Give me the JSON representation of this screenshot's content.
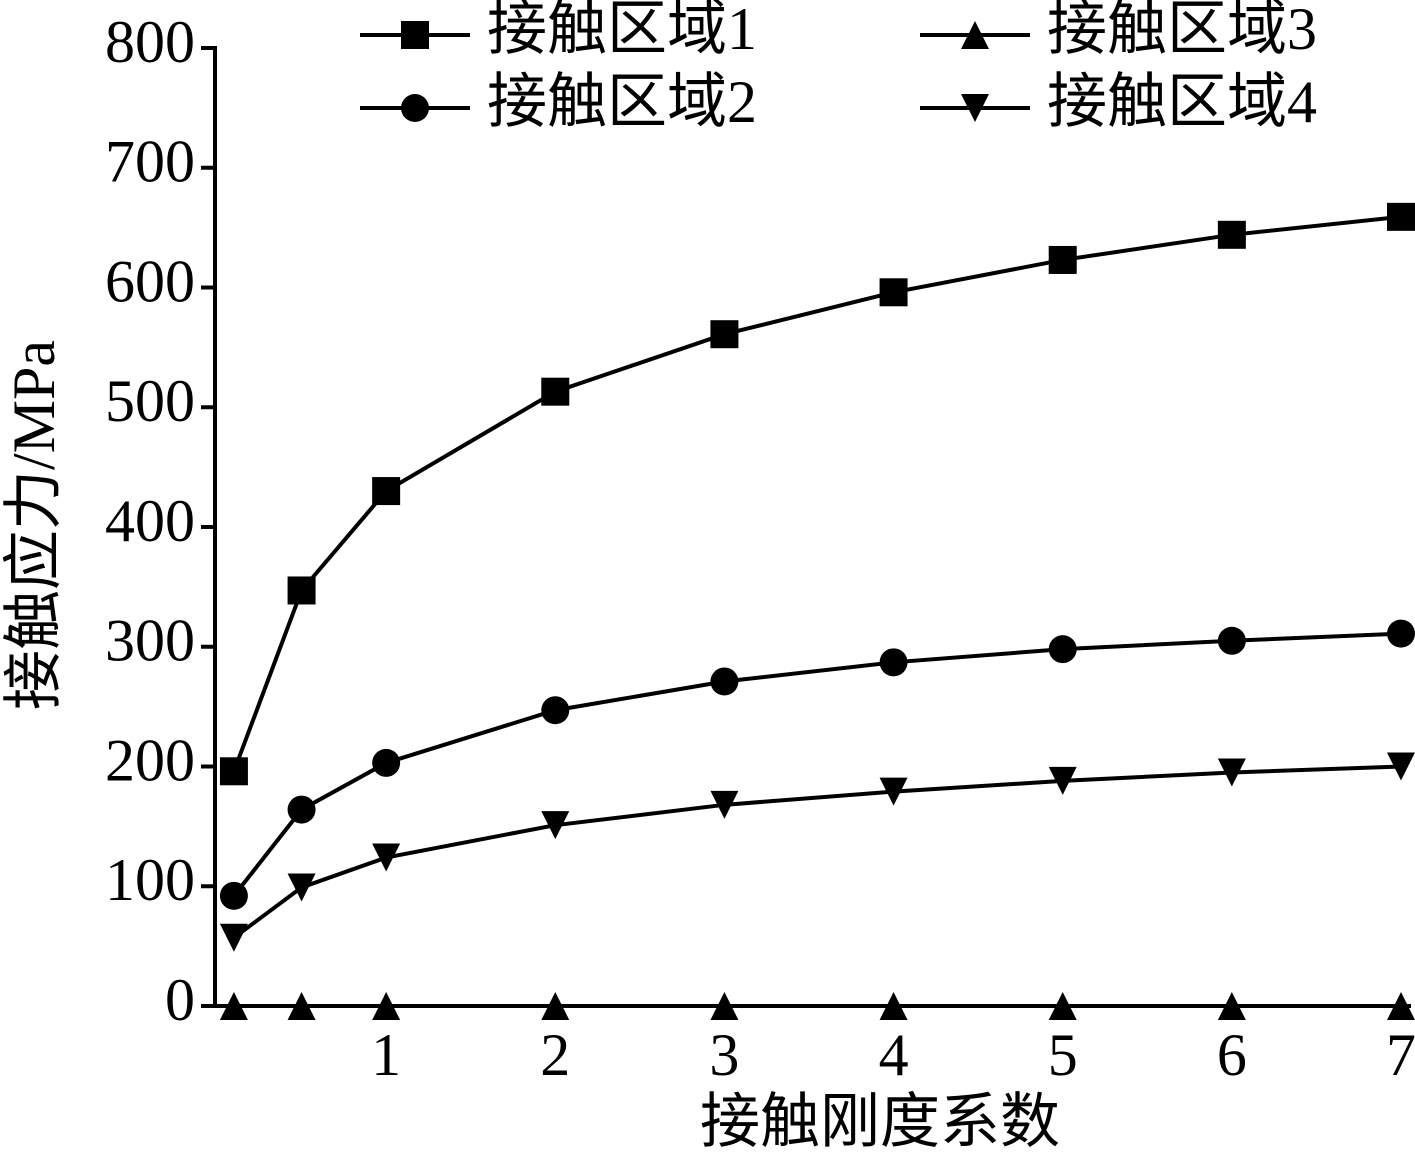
{
  "chart_data": {
    "type": "line",
    "x_label": "接触刚度系数",
    "y_label": "接触应力/MPa",
    "x": [
      0.1,
      0.5,
      1,
      2,
      3,
      4,
      5,
      6,
      7
    ],
    "series": [
      {
        "name": "接触区域1",
        "color": "#000000",
        "marker": "square",
        "values": [
          196,
          347,
          430,
          513,
          561,
          596,
          623,
          644,
          659
        ]
      },
      {
        "name": "接触区域2",
        "color": "#000000",
        "marker": "circle",
        "values": [
          92,
          164,
          203,
          247,
          271,
          287,
          298,
          305,
          311
        ]
      },
      {
        "name": "接触区域3",
        "color": "#000000",
        "marker": "triangle-up",
        "values": [
          0,
          0,
          0,
          0,
          0,
          0,
          0,
          0,
          0
        ]
      },
      {
        "name": "接触区域4",
        "color": "#000000",
        "marker": "triangle-down",
        "values": [
          57,
          99,
          124,
          151,
          168,
          179,
          188,
          195,
          200
        ]
      }
    ],
    "xlim": [
      0,
      7
    ],
    "ylim": [
      0,
      800
    ],
    "xticks": [
      1,
      2,
      3,
      4,
      5,
      6,
      7
    ],
    "yticks": [
      0,
      100,
      200,
      300,
      400,
      500,
      600,
      700,
      800
    ],
    "grid": false,
    "legend": "top"
  }
}
